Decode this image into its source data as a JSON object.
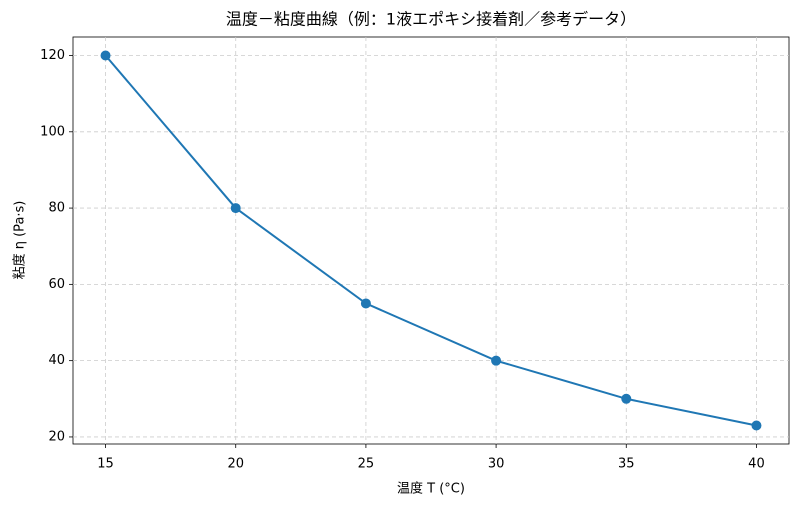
{
  "chart_data": {
    "type": "line",
    "title": "温度－粘度曲線（例：1液エポキシ接着剤／参考データ）",
    "x_label": "温度 T (°C)",
    "y_label": "粘度 η (Pa·s)",
    "x": [
      15,
      20,
      25,
      30,
      35,
      40
    ],
    "series": [
      {
        "color": "#1f77b4",
        "values": [
          120,
          80,
          55,
          40,
          30,
          23
        ]
      }
    ],
    "xlim": [
      13.75,
      41.25
    ],
    "xticks": [
      15,
      20,
      25,
      30,
      35,
      40
    ],
    "ylim": [
      18.15,
      124.85
    ],
    "yticks": [
      20,
      40,
      60,
      80,
      100,
      120
    ],
    "grid": true
  }
}
